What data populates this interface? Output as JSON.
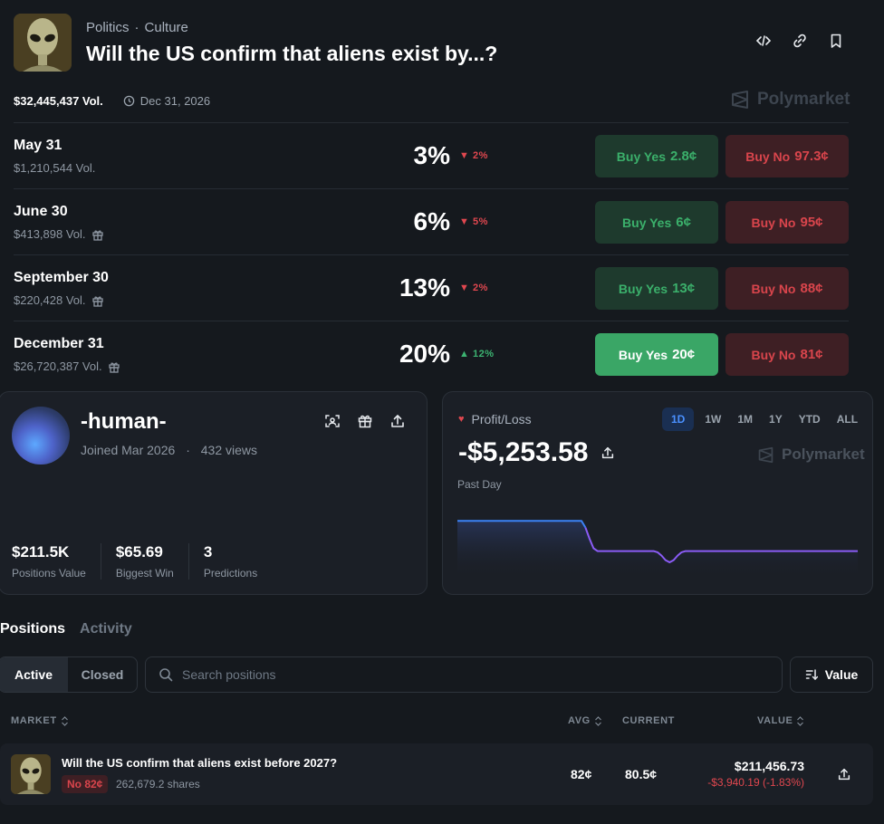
{
  "market": {
    "image": "alien-head-thumbnail",
    "categories": [
      "Politics",
      "Culture"
    ],
    "title": "Will the US confirm that aliens exist by...?",
    "volume": "$32,445,437 Vol.",
    "end_date": "Dec 31, 2026",
    "brand": "Polymarket",
    "header_icons": [
      "embed-code-icon",
      "link-icon",
      "bookmark-icon"
    ]
  },
  "outcomes": [
    {
      "label": "May 31",
      "volume": "$1,210,544 Vol.",
      "gift": false,
      "percent": "3%",
      "change": "2%",
      "direction": "down",
      "yes": {
        "text": "Buy Yes",
        "price": "2.8¢"
      },
      "no": {
        "text": "Buy No",
        "price": "97.3¢"
      }
    },
    {
      "label": "June 30",
      "volume": "$413,898 Vol.",
      "gift": true,
      "percent": "6%",
      "change": "5%",
      "direction": "down",
      "yes": {
        "text": "Buy Yes",
        "price": "6¢"
      },
      "no": {
        "text": "Buy No",
        "price": "95¢"
      }
    },
    {
      "label": "September 30",
      "volume": "$220,428 Vol.",
      "gift": true,
      "percent": "13%",
      "change": "2%",
      "direction": "down",
      "yes": {
        "text": "Buy Yes",
        "price": "13¢"
      },
      "no": {
        "text": "Buy No",
        "price": "88¢"
      }
    },
    {
      "label": "December 31",
      "volume": "$26,720,387 Vol.",
      "gift": true,
      "percent": "20%",
      "change": "12%",
      "direction": "up",
      "highlight": true,
      "yes": {
        "text": "Buy Yes",
        "price": "20¢"
      },
      "no": {
        "text": "Buy No",
        "price": "81¢"
      }
    }
  ],
  "profile": {
    "username": "-human-",
    "joined": "Joined Mar 2026",
    "views": "432 views",
    "stats": [
      {
        "value": "$211.5K",
        "label": "Positions Value"
      },
      {
        "value": "$65.69",
        "label": "Biggest Win"
      },
      {
        "value": "3",
        "label": "Predictions"
      }
    ]
  },
  "pnl": {
    "label": "Profit/Loss",
    "ranges": [
      "1D",
      "1W",
      "1M",
      "1Y",
      "YTD",
      "ALL"
    ],
    "active_range": "1D",
    "value": "-$5,253.58",
    "period": "Past Day",
    "brand": "Polymarket"
  },
  "chart_data": {
    "type": "area",
    "series": [
      {
        "values": [
          0.82,
          0.82,
          0.82,
          0.82,
          0.82,
          0.82,
          0.82,
          0.82,
          0.82,
          0.82,
          0.82,
          0.82,
          0.82,
          0.82,
          0.82,
          0.82,
          0.82,
          0.82,
          0.82,
          0.82,
          0.82,
          0.82,
          0.82,
          0.82,
          0.82,
          0.82,
          0.82,
          0.82,
          0.82,
          0.82,
          0.82,
          0.82,
          0.7,
          0.5,
          0.33,
          0.28,
          0.28,
          0.28,
          0.28,
          0.28,
          0.28,
          0.28,
          0.28,
          0.28,
          0.28,
          0.28,
          0.28,
          0.28,
          0.28,
          0.28,
          0.26,
          0.2,
          0.12,
          0.08,
          0.12,
          0.2,
          0.26,
          0.28,
          0.28,
          0.28,
          0.28,
          0.28,
          0.28,
          0.28,
          0.28,
          0.28,
          0.28,
          0.28,
          0.28,
          0.28,
          0.28,
          0.28,
          0.28,
          0.28,
          0.28,
          0.28,
          0.28,
          0.28,
          0.28,
          0.28,
          0.28,
          0.28,
          0.28,
          0.28,
          0.28,
          0.28,
          0.28,
          0.28,
          0.28,
          0.28,
          0.28,
          0.28,
          0.28,
          0.28,
          0.28,
          0.28,
          0.28,
          0.28,
          0.28,
          0.28,
          0.28
        ]
      }
    ],
    "colors": {
      "before": "#3b82f6",
      "after": "#8b5cf6"
    }
  },
  "positions": {
    "tabs": [
      "Positions",
      "Activity"
    ],
    "filters": [
      "Active",
      "Closed"
    ],
    "search_placeholder": "Search positions",
    "sort_label": "Value",
    "columns": {
      "market": "MARKET",
      "avg": "AVG",
      "current": "CURRENT",
      "value": "VALUE"
    },
    "rows": [
      {
        "title": "Will the US confirm that aliens exist before 2027?",
        "badge": "No 82¢",
        "shares": "262,679.2 shares",
        "avg": "82¢",
        "current": "80.5¢",
        "value": "$211,456.73",
        "pnl": "-$3,940.19 (-1.83%)"
      }
    ]
  }
}
